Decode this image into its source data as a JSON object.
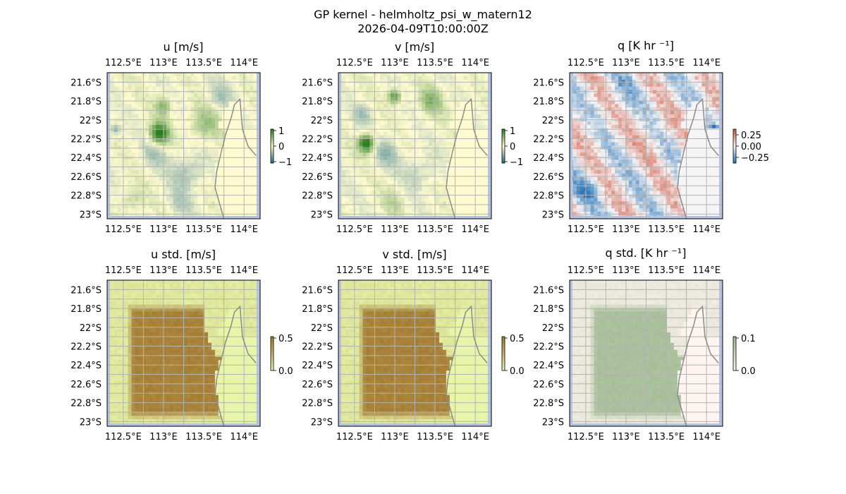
{
  "figure": {
    "title_line1": "GP kernel - helmholtz_psi_w_matern12",
    "title_line2": "2026-04-09T10:00:00Z"
  },
  "axes": {
    "lon_ticks": [
      "112.5°E",
      "113°E",
      "113.5°E",
      "114°E"
    ],
    "lat_ticks": [
      "21.6°S",
      "21.8°S",
      "22°S",
      "22.2°S",
      "22.4°S",
      "22.6°S",
      "22.8°S",
      "23°S"
    ],
    "lon_range": [
      112.3,
      114.2
    ],
    "lat_range": [
      -23.05,
      -21.5
    ]
  },
  "colors": {
    "land": "#b4c4e0",
    "coast": "#8c8c8c",
    "grid": "#b3b3b3",
    "mean_uv_low": "#1f6f8b",
    "mean_uv_mid": "#fffbd0",
    "mean_uv_high": "#2a7f1e",
    "std_uv_low": "#e6f5a8",
    "std_uv_high": "#a2782e",
    "q_low": "#2874b8",
    "q_mid": "#f5f5f5",
    "q_high": "#d2553e",
    "qstd_low": "#fff5f0",
    "qstd_high": "#9bb88e"
  },
  "chart_data": [
    {
      "type": "heatmap",
      "title": "u [m/s]",
      "variable": "u",
      "units": "m/s",
      "colorbar_ticks": [
        "1",
        "0",
        "−1"
      ],
      "vmin": -1.2,
      "vmax": 1.2,
      "blobs": [
        {
          "lon": 112.95,
          "lat": -22.15,
          "amp": 1.3,
          "r": 0.12
        },
        {
          "lon": 113.0,
          "lat": -21.85,
          "amp": 0.7,
          "r": 0.1
        },
        {
          "lon": 113.5,
          "lat": -22.05,
          "amp": 0.5,
          "r": 0.2
        },
        {
          "lon": 113.3,
          "lat": -22.55,
          "amp": -0.5,
          "r": 0.2
        },
        {
          "lon": 112.9,
          "lat": -22.35,
          "amp": -0.4,
          "r": 0.15
        },
        {
          "lon": 112.6,
          "lat": -22.85,
          "amp": 0.4,
          "r": 0.15
        },
        {
          "lon": 113.7,
          "lat": -21.75,
          "amp": -0.4,
          "r": 0.15
        },
        {
          "lon": 112.4,
          "lat": -22.1,
          "amp": -0.7,
          "r": 0.06
        },
        {
          "lon": 113.2,
          "lat": -22.9,
          "amp": -0.3,
          "r": 0.15
        }
      ]
    },
    {
      "type": "heatmap",
      "title": "v [m/s]",
      "variable": "v",
      "units": "m/s",
      "colorbar_ticks": [
        "1",
        "0",
        "−1"
      ],
      "vmin": -1.2,
      "vmax": 1.2,
      "blobs": [
        {
          "lon": 112.65,
          "lat": -22.25,
          "amp": 1.4,
          "r": 0.1
        },
        {
          "lon": 113.0,
          "lat": -21.75,
          "amp": 1.0,
          "r": 0.08
        },
        {
          "lon": 113.45,
          "lat": -21.8,
          "amp": 0.6,
          "r": 0.15
        },
        {
          "lon": 112.9,
          "lat": -22.35,
          "amp": -0.5,
          "r": 0.15
        },
        {
          "lon": 112.6,
          "lat": -21.95,
          "amp": -0.4,
          "r": 0.12
        },
        {
          "lon": 113.3,
          "lat": -22.55,
          "amp": -0.35,
          "r": 0.2
        },
        {
          "lon": 113.0,
          "lat": -22.85,
          "amp": 0.3,
          "r": 0.15
        },
        {
          "lon": 114.0,
          "lat": -22.45,
          "amp": -0.8,
          "r": 0.05
        }
      ]
    },
    {
      "type": "heatmap",
      "title": "q [K hr ⁻¹]",
      "variable": "q",
      "units": "K hr^-1",
      "colorbar_ticks": [
        "0.25",
        "0.00",
        "−0.25"
      ],
      "vmin": -0.35,
      "vmax": 0.35,
      "blobs": [
        {
          "lon": 112.5,
          "lat": -22.75,
          "amp": -0.18,
          "r": 0.15
        },
        {
          "lon": 113.3,
          "lat": -22.15,
          "amp": 0.05,
          "r": 0.25
        },
        {
          "lon": 112.6,
          "lat": -22.1,
          "amp": 0.06,
          "r": 0.15
        },
        {
          "lon": 113.0,
          "lat": -21.65,
          "amp": -0.08,
          "r": 0.2
        },
        {
          "lon": 114.1,
          "lat": -22.1,
          "amp": -0.3,
          "r": 0.05
        },
        {
          "lon": 114.1,
          "lat": -22.4,
          "amp": -0.25,
          "r": 0.04
        }
      ]
    },
    {
      "type": "heatmap",
      "title": "u std. [m/s]",
      "variable": "u_std",
      "units": "m/s",
      "colorbar_ticks": [
        "0.5",
        "0.0"
      ],
      "vmin": 0,
      "vmax": 0.7,
      "low": 0.05,
      "high": 0.45
    },
    {
      "type": "heatmap",
      "title": "v std. [m/s]",
      "variable": "v_std",
      "units": "m/s",
      "colorbar_ticks": [
        "0.5",
        "0.0"
      ],
      "vmin": 0,
      "vmax": 0.7,
      "low": 0.05,
      "high": 0.45
    },
    {
      "type": "heatmap",
      "title": "q std. [K hr ⁻¹]",
      "variable": "q_std",
      "units": "K hr^-1",
      "colorbar_ticks": [
        "0.1",
        "0.0"
      ],
      "vmin": 0,
      "vmax": 0.15,
      "low": 0.01,
      "high": 0.045
    }
  ]
}
